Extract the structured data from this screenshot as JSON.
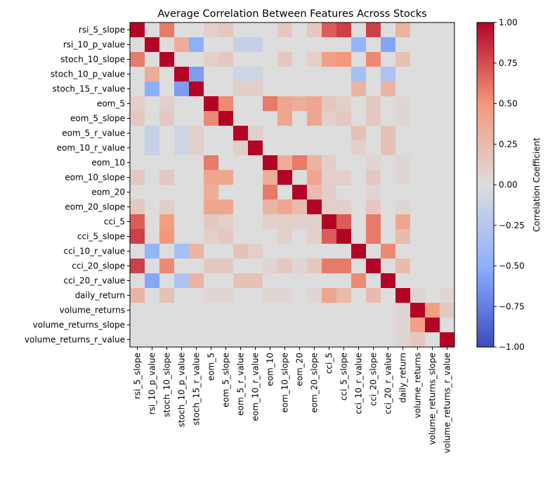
{
  "chart_data": {
    "type": "heatmap",
    "title": "Average Correlation Between Features Across Stocks",
    "xlabel": "",
    "ylabel": "",
    "labels": [
      "rsi_5_slope",
      "rsi_10_p_value",
      "stoch_10_slope",
      "stoch_10_p_value",
      "stoch_15_r_value",
      "eom_5",
      "eom_5_slope",
      "eom_5_r_value",
      "eom_10_r_value",
      "eom_10",
      "eom_10_slope",
      "eom_20",
      "eom_20_slope",
      "cci_5",
      "cci_5_slope",
      "cci_10_r_value",
      "cci_20_slope",
      "cci_20_r_value",
      "daily_return",
      "volume_returns",
      "volume_returns_slope",
      "volume_returns_r_value"
    ],
    "matrix": [
      [
        1.0,
        0.0,
        0.6,
        0.0,
        0.0,
        0.1,
        0.15,
        0.0,
        0.0,
        0.0,
        0.15,
        0.0,
        0.15,
        0.7,
        0.8,
        0.0,
        0.8,
        0.0,
        0.3,
        0.0,
        0.0,
        0.0
      ],
      [
        0.0,
        1.0,
        0.0,
        0.35,
        -0.5,
        0.0,
        0.0,
        -0.15,
        -0.15,
        0.0,
        0.0,
        0.0,
        0.0,
        0.0,
        0.0,
        -0.45,
        0.0,
        -0.55,
        0.0,
        0.0,
        0.0,
        0.0
      ],
      [
        0.6,
        0.0,
        1.0,
        0.0,
        0.0,
        0.1,
        0.15,
        0.0,
        0.0,
        0.0,
        0.15,
        0.0,
        0.1,
        0.45,
        0.5,
        0.0,
        0.55,
        0.0,
        0.2,
        0.0,
        0.0,
        0.0
      ],
      [
        0.0,
        0.35,
        0.0,
        1.0,
        -0.6,
        0.0,
        0.0,
        -0.1,
        -0.1,
        0.0,
        0.0,
        0.0,
        0.0,
        0.0,
        0.0,
        -0.35,
        0.0,
        -0.3,
        0.0,
        0.0,
        0.0,
        0.0
      ],
      [
        0.0,
        -0.5,
        0.0,
        -0.6,
        1.0,
        0.0,
        0.0,
        0.1,
        0.1,
        0.0,
        0.0,
        0.0,
        0.0,
        0.0,
        0.0,
        0.3,
        0.0,
        0.3,
        0.0,
        0.0,
        0.0,
        0.0
      ],
      [
        0.1,
        0.0,
        0.1,
        0.0,
        0.0,
        1.0,
        0.55,
        0.0,
        0.0,
        0.6,
        0.4,
        0.35,
        0.4,
        0.15,
        0.1,
        0.0,
        0.15,
        0.0,
        0.05,
        0.0,
        0.0,
        0.0
      ],
      [
        0.15,
        0.0,
        0.15,
        0.0,
        0.0,
        0.55,
        1.0,
        0.0,
        0.0,
        0.0,
        0.4,
        0.0,
        0.4,
        0.1,
        0.15,
        0.0,
        0.15,
        0.0,
        0.05,
        0.0,
        0.0,
        0.0
      ],
      [
        0.0,
        -0.15,
        0.0,
        -0.1,
        0.1,
        0.0,
        0.0,
        1.0,
        0.1,
        0.0,
        0.0,
        0.0,
        0.0,
        0.0,
        0.0,
        0.2,
        0.0,
        0.2,
        0.0,
        0.0,
        0.0,
        0.0
      ],
      [
        0.0,
        -0.15,
        0.0,
        -0.1,
        0.1,
        0.0,
        0.0,
        0.1,
        1.0,
        0.0,
        0.0,
        0.0,
        0.0,
        0.0,
        0.0,
        0.1,
        0.0,
        0.2,
        0.0,
        0.0,
        0.0,
        0.0
      ],
      [
        0.0,
        0.0,
        0.0,
        0.0,
        0.0,
        0.6,
        0.0,
        0.0,
        0.0,
        1.0,
        0.35,
        0.6,
        0.3,
        0.1,
        0.0,
        0.0,
        0.05,
        0.0,
        0.05,
        0.0,
        0.0,
        0.0
      ],
      [
        0.15,
        0.0,
        0.15,
        0.0,
        0.0,
        0.4,
        0.4,
        0.0,
        0.0,
        0.35,
        1.0,
        0.0,
        0.4,
        0.1,
        0.1,
        0.0,
        0.15,
        0.0,
        0.05,
        0.0,
        0.0,
        0.0
      ],
      [
        0.0,
        0.0,
        0.0,
        0.0,
        0.0,
        0.35,
        0.0,
        0.0,
        0.0,
        0.6,
        0.0,
        1.0,
        0.25,
        0.1,
        0.0,
        0.0,
        0.05,
        0.0,
        0.0,
        0.0,
        0.0,
        0.0
      ],
      [
        0.15,
        0.0,
        0.1,
        0.0,
        0.0,
        0.4,
        0.4,
        0.0,
        0.0,
        0.3,
        0.4,
        0.25,
        1.0,
        0.1,
        0.1,
        0.0,
        0.15,
        0.0,
        0.05,
        0.0,
        0.0,
        0.0
      ],
      [
        0.7,
        0.0,
        0.45,
        0.0,
        0.0,
        0.15,
        0.1,
        0.0,
        0.0,
        0.1,
        0.1,
        0.1,
        0.1,
        1.0,
        0.7,
        0.0,
        0.6,
        0.0,
        0.4,
        0.0,
        0.0,
        0.0
      ],
      [
        0.8,
        0.0,
        0.5,
        0.0,
        0.0,
        0.1,
        0.15,
        0.0,
        0.0,
        0.0,
        0.1,
        0.0,
        0.1,
        0.7,
        1.0,
        0.0,
        0.6,
        0.0,
        0.25,
        0.0,
        0.0,
        0.0
      ],
      [
        0.0,
        -0.45,
        0.0,
        -0.35,
        0.3,
        0.0,
        0.0,
        0.2,
        0.1,
        0.0,
        0.0,
        0.0,
        0.0,
        0.0,
        0.0,
        1.0,
        0.0,
        0.55,
        0.0,
        0.0,
        0.0,
        0.0
      ],
      [
        0.8,
        0.0,
        0.55,
        0.0,
        0.0,
        0.15,
        0.15,
        0.0,
        0.0,
        0.05,
        0.15,
        0.05,
        0.15,
        0.6,
        0.6,
        0.0,
        1.0,
        0.0,
        0.25,
        0.0,
        0.0,
        0.0
      ],
      [
        0.0,
        -0.55,
        0.0,
        -0.3,
        0.3,
        0.0,
        0.0,
        0.2,
        0.2,
        0.0,
        0.0,
        0.0,
        0.0,
        0.0,
        0.0,
        0.55,
        0.0,
        1.0,
        0.0,
        0.0,
        0.0,
        0.0
      ],
      [
        0.3,
        0.0,
        0.2,
        0.0,
        0.0,
        0.05,
        0.05,
        0.0,
        0.0,
        0.05,
        0.05,
        0.0,
        0.05,
        0.4,
        0.25,
        0.0,
        0.25,
        0.0,
        1.0,
        0.05,
        0.0,
        0.05
      ],
      [
        0.0,
        0.0,
        0.0,
        0.0,
        0.0,
        0.0,
        0.0,
        0.0,
        0.0,
        0.0,
        0.0,
        0.0,
        0.0,
        0.0,
        0.0,
        0.0,
        0.0,
        0.0,
        0.05,
        1.0,
        0.45,
        0.15
      ],
      [
        0.0,
        0.0,
        0.0,
        0.0,
        0.0,
        0.0,
        0.0,
        0.0,
        0.0,
        0.0,
        0.0,
        0.0,
        0.0,
        0.0,
        0.0,
        0.0,
        0.0,
        0.0,
        0.05,
        0.45,
        1.0,
        0.0
      ],
      [
        0.0,
        0.0,
        0.0,
        0.0,
        0.0,
        0.0,
        0.0,
        0.0,
        0.0,
        0.0,
        0.0,
        0.0,
        0.0,
        0.0,
        0.0,
        0.0,
        0.0,
        0.0,
        0.05,
        0.15,
        0.0,
        1.0
      ]
    ],
    "colormap": "coolwarm",
    "vmin": -1.0,
    "vmax": 1.0,
    "colorbar": {
      "label": "Correlation Coefficient",
      "ticks": [
        1.0,
        0.75,
        0.5,
        0.25,
        0.0,
        -0.25,
        -0.5,
        -0.75,
        -1.0
      ],
      "tick_labels": [
        "1.00",
        "0.75",
        "0.50",
        "0.25",
        "0.00",
        "−0.25",
        "−0.50",
        "−0.75",
        "−1.00"
      ]
    },
    "grid": false,
    "legend": "colorbar-right"
  }
}
